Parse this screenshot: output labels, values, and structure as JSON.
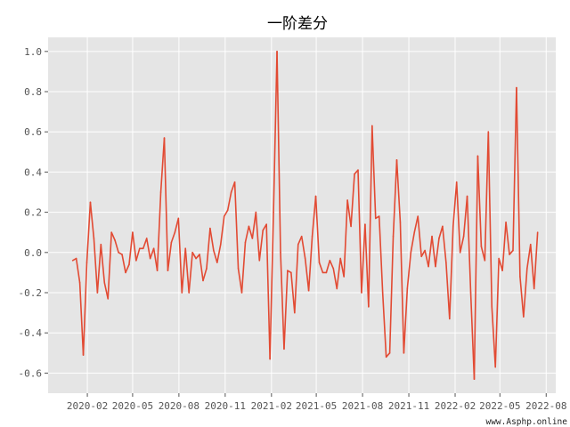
{
  "chart_data": {
    "type": "line",
    "title": "一阶差分",
    "xlabel": "",
    "ylabel": "",
    "style": "ggplot",
    "grid": true,
    "line_color": "#e24a33",
    "background_color": "#e5e5e5",
    "xlim": [
      "2019-11-15",
      "2022-08-20"
    ],
    "ylim": [
      -0.7,
      1.07
    ],
    "x_ticks": [
      {
        "value": "2020-02-01",
        "label": "2020-02"
      },
      {
        "value": "2020-05-01",
        "label": "2020-05"
      },
      {
        "value": "2020-08-01",
        "label": "2020-08"
      },
      {
        "value": "2020-11-01",
        "label": "2020-11"
      },
      {
        "value": "2021-02-01",
        "label": "2021-02"
      },
      {
        "value": "2021-05-01",
        "label": "2021-05"
      },
      {
        "value": "2021-08-01",
        "label": "2021-08"
      },
      {
        "value": "2021-11-01",
        "label": "2021-11"
      },
      {
        "value": "2022-02-01",
        "label": "2022-02"
      },
      {
        "value": "2022-05-01",
        "label": "2022-05"
      },
      {
        "value": "2022-08-01",
        "label": "2022-08"
      }
    ],
    "y_ticks": [
      {
        "value": 1.0,
        "label": "1.0"
      },
      {
        "value": 0.8,
        "label": "0.8"
      },
      {
        "value": 0.6,
        "label": "0.6"
      },
      {
        "value": 0.4,
        "label": "0.4"
      },
      {
        "value": 0.2,
        "label": "0.2"
      },
      {
        "value": 0.0,
        "label": "0.0"
      },
      {
        "value": -0.2,
        "label": "-0.2"
      },
      {
        "value": -0.4,
        "label": "-0.4"
      },
      {
        "value": -0.6,
        "label": "-0.6"
      }
    ],
    "series": [
      {
        "points": [
          {
            "x": "2020-01-03",
            "y": -0.04
          },
          {
            "x": "2020-01-10",
            "y": -0.03
          },
          {
            "x": "2020-01-17",
            "y": -0.15
          },
          {
            "x": "2020-01-24",
            "y": -0.51
          },
          {
            "x": "2020-01-31",
            "y": -0.05
          },
          {
            "x": "2020-02-07",
            "y": 0.25
          },
          {
            "x": "2020-02-14",
            "y": 0.07
          },
          {
            "x": "2020-02-21",
            "y": -0.2
          },
          {
            "x": "2020-02-28",
            "y": 0.04
          },
          {
            "x": "2020-03-06",
            "y": -0.15
          },
          {
            "x": "2020-03-13",
            "y": -0.23
          },
          {
            "x": "2020-03-20",
            "y": 0.1
          },
          {
            "x": "2020-03-27",
            "y": 0.06
          },
          {
            "x": "2020-04-03",
            "y": 0.0
          },
          {
            "x": "2020-04-10",
            "y": -0.01
          },
          {
            "x": "2020-04-17",
            "y": -0.1
          },
          {
            "x": "2020-04-24",
            "y": -0.06
          },
          {
            "x": "2020-05-01",
            "y": 0.1
          },
          {
            "x": "2020-05-08",
            "y": -0.04
          },
          {
            "x": "2020-05-15",
            "y": 0.02
          },
          {
            "x": "2020-05-22",
            "y": 0.02
          },
          {
            "x": "2020-05-29",
            "y": 0.07
          },
          {
            "x": "2020-06-05",
            "y": -0.03
          },
          {
            "x": "2020-06-12",
            "y": 0.02
          },
          {
            "x": "2020-06-19",
            "y": -0.09
          },
          {
            "x": "2020-06-26",
            "y": 0.3
          },
          {
            "x": "2020-07-03",
            "y": 0.57
          },
          {
            "x": "2020-07-10",
            "y": -0.09
          },
          {
            "x": "2020-07-17",
            "y": 0.05
          },
          {
            "x": "2020-07-24",
            "y": 0.1
          },
          {
            "x": "2020-07-31",
            "y": 0.17
          },
          {
            "x": "2020-08-07",
            "y": -0.2
          },
          {
            "x": "2020-08-14",
            "y": 0.02
          },
          {
            "x": "2020-08-21",
            "y": -0.2
          },
          {
            "x": "2020-08-28",
            "y": 0.0
          },
          {
            "x": "2020-09-04",
            "y": -0.03
          },
          {
            "x": "2020-09-11",
            "y": -0.01
          },
          {
            "x": "2020-09-18",
            "y": -0.14
          },
          {
            "x": "2020-09-25",
            "y": -0.08
          },
          {
            "x": "2020-10-02",
            "y": 0.12
          },
          {
            "x": "2020-10-09",
            "y": 0.01
          },
          {
            "x": "2020-10-16",
            "y": -0.05
          },
          {
            "x": "2020-10-23",
            "y": 0.04
          },
          {
            "x": "2020-10-30",
            "y": 0.18
          },
          {
            "x": "2020-11-06",
            "y": 0.21
          },
          {
            "x": "2020-11-13",
            "y": 0.3
          },
          {
            "x": "2020-11-20",
            "y": 0.35
          },
          {
            "x": "2020-11-27",
            "y": -0.08
          },
          {
            "x": "2020-12-04",
            "y": -0.2
          },
          {
            "x": "2020-12-11",
            "y": 0.05
          },
          {
            "x": "2020-12-18",
            "y": 0.13
          },
          {
            "x": "2020-12-25",
            "y": 0.07
          },
          {
            "x": "2021-01-01",
            "y": 0.2
          },
          {
            "x": "2021-01-08",
            "y": -0.04
          },
          {
            "x": "2021-01-15",
            "y": 0.11
          },
          {
            "x": "2021-01-22",
            "y": 0.14
          },
          {
            "x": "2021-01-29",
            "y": -0.53
          },
          {
            "x": "2021-02-05",
            "y": 0.2
          },
          {
            "x": "2021-02-12",
            "y": 1.0
          },
          {
            "x": "2021-02-19",
            "y": 0.0
          },
          {
            "x": "2021-02-26",
            "y": -0.48
          },
          {
            "x": "2021-03-05",
            "y": -0.09
          },
          {
            "x": "2021-03-12",
            "y": -0.1
          },
          {
            "x": "2021-03-19",
            "y": -0.3
          },
          {
            "x": "2021-03-26",
            "y": 0.04
          },
          {
            "x": "2021-04-02",
            "y": 0.08
          },
          {
            "x": "2021-04-09",
            "y": -0.03
          },
          {
            "x": "2021-04-16",
            "y": -0.19
          },
          {
            "x": "2021-04-23",
            "y": 0.08
          },
          {
            "x": "2021-04-30",
            "y": 0.28
          },
          {
            "x": "2021-05-07",
            "y": -0.05
          },
          {
            "x": "2021-05-14",
            "y": -0.1
          },
          {
            "x": "2021-05-21",
            "y": -0.1
          },
          {
            "x": "2021-05-28",
            "y": -0.04
          },
          {
            "x": "2021-06-04",
            "y": -0.08
          },
          {
            "x": "2021-06-11",
            "y": -0.18
          },
          {
            "x": "2021-06-18",
            "y": -0.03
          },
          {
            "x": "2021-06-25",
            "y": -0.12
          },
          {
            "x": "2021-07-02",
            "y": 0.26
          },
          {
            "x": "2021-07-09",
            "y": 0.13
          },
          {
            "x": "2021-07-16",
            "y": 0.39
          },
          {
            "x": "2021-07-23",
            "y": 0.41
          },
          {
            "x": "2021-07-30",
            "y": -0.2
          },
          {
            "x": "2021-08-06",
            "y": 0.14
          },
          {
            "x": "2021-08-13",
            "y": -0.27
          },
          {
            "x": "2021-08-20",
            "y": 0.63
          },
          {
            "x": "2021-08-27",
            "y": 0.17
          },
          {
            "x": "2021-09-03",
            "y": 0.18
          },
          {
            "x": "2021-09-10",
            "y": -0.2
          },
          {
            "x": "2021-09-17",
            "y": -0.52
          },
          {
            "x": "2021-09-24",
            "y": -0.5
          },
          {
            "x": "2021-10-01",
            "y": 0.08
          },
          {
            "x": "2021-10-08",
            "y": 0.46
          },
          {
            "x": "2021-10-15",
            "y": 0.15
          },
          {
            "x": "2021-10-22",
            "y": -0.5
          },
          {
            "x": "2021-10-29",
            "y": -0.18
          },
          {
            "x": "2021-11-05",
            "y": 0.0
          },
          {
            "x": "2021-11-12",
            "y": 0.1
          },
          {
            "x": "2021-11-19",
            "y": 0.18
          },
          {
            "x": "2021-11-26",
            "y": -0.02
          },
          {
            "x": "2021-12-03",
            "y": 0.01
          },
          {
            "x": "2021-12-10",
            "y": -0.07
          },
          {
            "x": "2021-12-17",
            "y": 0.08
          },
          {
            "x": "2021-12-24",
            "y": -0.07
          },
          {
            "x": "2021-12-31",
            "y": 0.07
          },
          {
            "x": "2022-01-07",
            "y": 0.13
          },
          {
            "x": "2022-01-14",
            "y": -0.05
          },
          {
            "x": "2022-01-21",
            "y": -0.33
          },
          {
            "x": "2022-01-28",
            "y": 0.13
          },
          {
            "x": "2022-02-04",
            "y": 0.35
          },
          {
            "x": "2022-02-11",
            "y": 0.0
          },
          {
            "x": "2022-02-18",
            "y": 0.08
          },
          {
            "x": "2022-02-25",
            "y": 0.28
          },
          {
            "x": "2022-03-04",
            "y": -0.2
          },
          {
            "x": "2022-03-11",
            "y": -0.63
          },
          {
            "x": "2022-03-18",
            "y": 0.48
          },
          {
            "x": "2022-03-25",
            "y": 0.03
          },
          {
            "x": "2022-04-01",
            "y": -0.04
          },
          {
            "x": "2022-04-08",
            "y": 0.6
          },
          {
            "x": "2022-04-15",
            "y": -0.27
          },
          {
            "x": "2022-04-22",
            "y": -0.57
          },
          {
            "x": "2022-04-29",
            "y": -0.03
          },
          {
            "x": "2022-05-06",
            "y": -0.09
          },
          {
            "x": "2022-05-13",
            "y": 0.15
          },
          {
            "x": "2022-05-20",
            "y": -0.01
          },
          {
            "x": "2022-05-27",
            "y": 0.01
          },
          {
            "x": "2022-06-03",
            "y": 0.82
          },
          {
            "x": "2022-06-10",
            "y": -0.12
          },
          {
            "x": "2022-06-17",
            "y": -0.32
          },
          {
            "x": "2022-06-24",
            "y": -0.08
          },
          {
            "x": "2022-07-01",
            "y": 0.04
          },
          {
            "x": "2022-07-08",
            "y": -0.18
          },
          {
            "x": "2022-07-15",
            "y": 0.1
          }
        ]
      }
    ]
  },
  "watermark": "www.Asphp.online"
}
